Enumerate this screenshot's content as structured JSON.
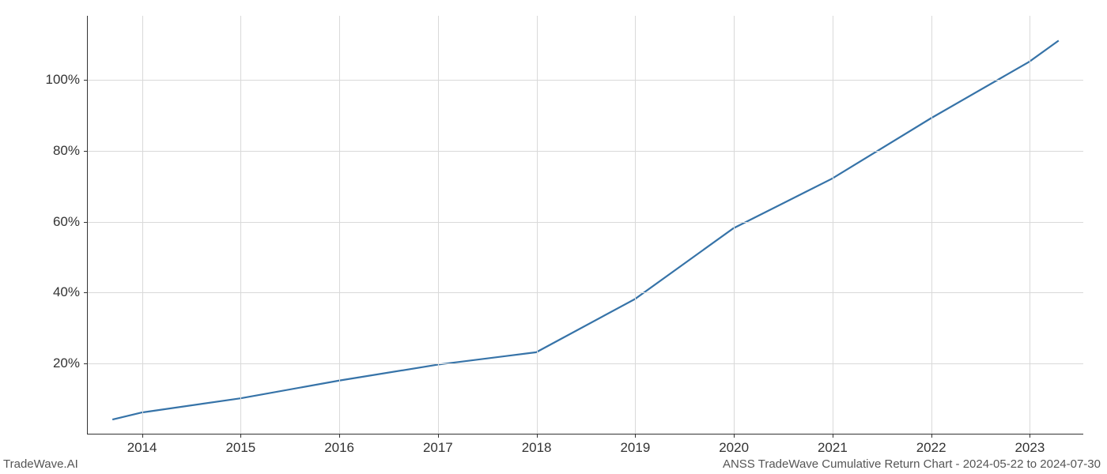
{
  "chart": {
    "type": "line",
    "x_values": [
      2013.7,
      2014,
      2015,
      2016,
      2017,
      2018,
      2019,
      2020,
      2021,
      2022,
      2023,
      2023.3
    ],
    "y_values": [
      4,
      6,
      10,
      15,
      19.5,
      23,
      38,
      58,
      72,
      89,
      105,
      111
    ],
    "line_color": "#3673a8",
    "line_width": 2.2,
    "background_color": "#ffffff",
    "grid_color": "#d9d9d9",
    "axis_color": "#333333",
    "x_ticks": [
      2014,
      2015,
      2016,
      2017,
      2018,
      2019,
      2020,
      2021,
      2022,
      2023
    ],
    "x_tick_labels": [
      "2014",
      "2015",
      "2016",
      "2017",
      "2018",
      "2019",
      "2020",
      "2021",
      "2022",
      "2023"
    ],
    "y_ticks": [
      20,
      40,
      60,
      80,
      100
    ],
    "y_tick_labels": [
      "20%",
      "40%",
      "60%",
      "80%",
      "100%"
    ],
    "xlim": [
      2013.45,
      2023.55
    ],
    "ylim": [
      0,
      118
    ],
    "tick_fontsize": 17
  },
  "footer": {
    "left": "TradeWave.AI",
    "right": "ANSS TradeWave Cumulative Return Chart - 2024-05-22 to 2024-07-30"
  }
}
